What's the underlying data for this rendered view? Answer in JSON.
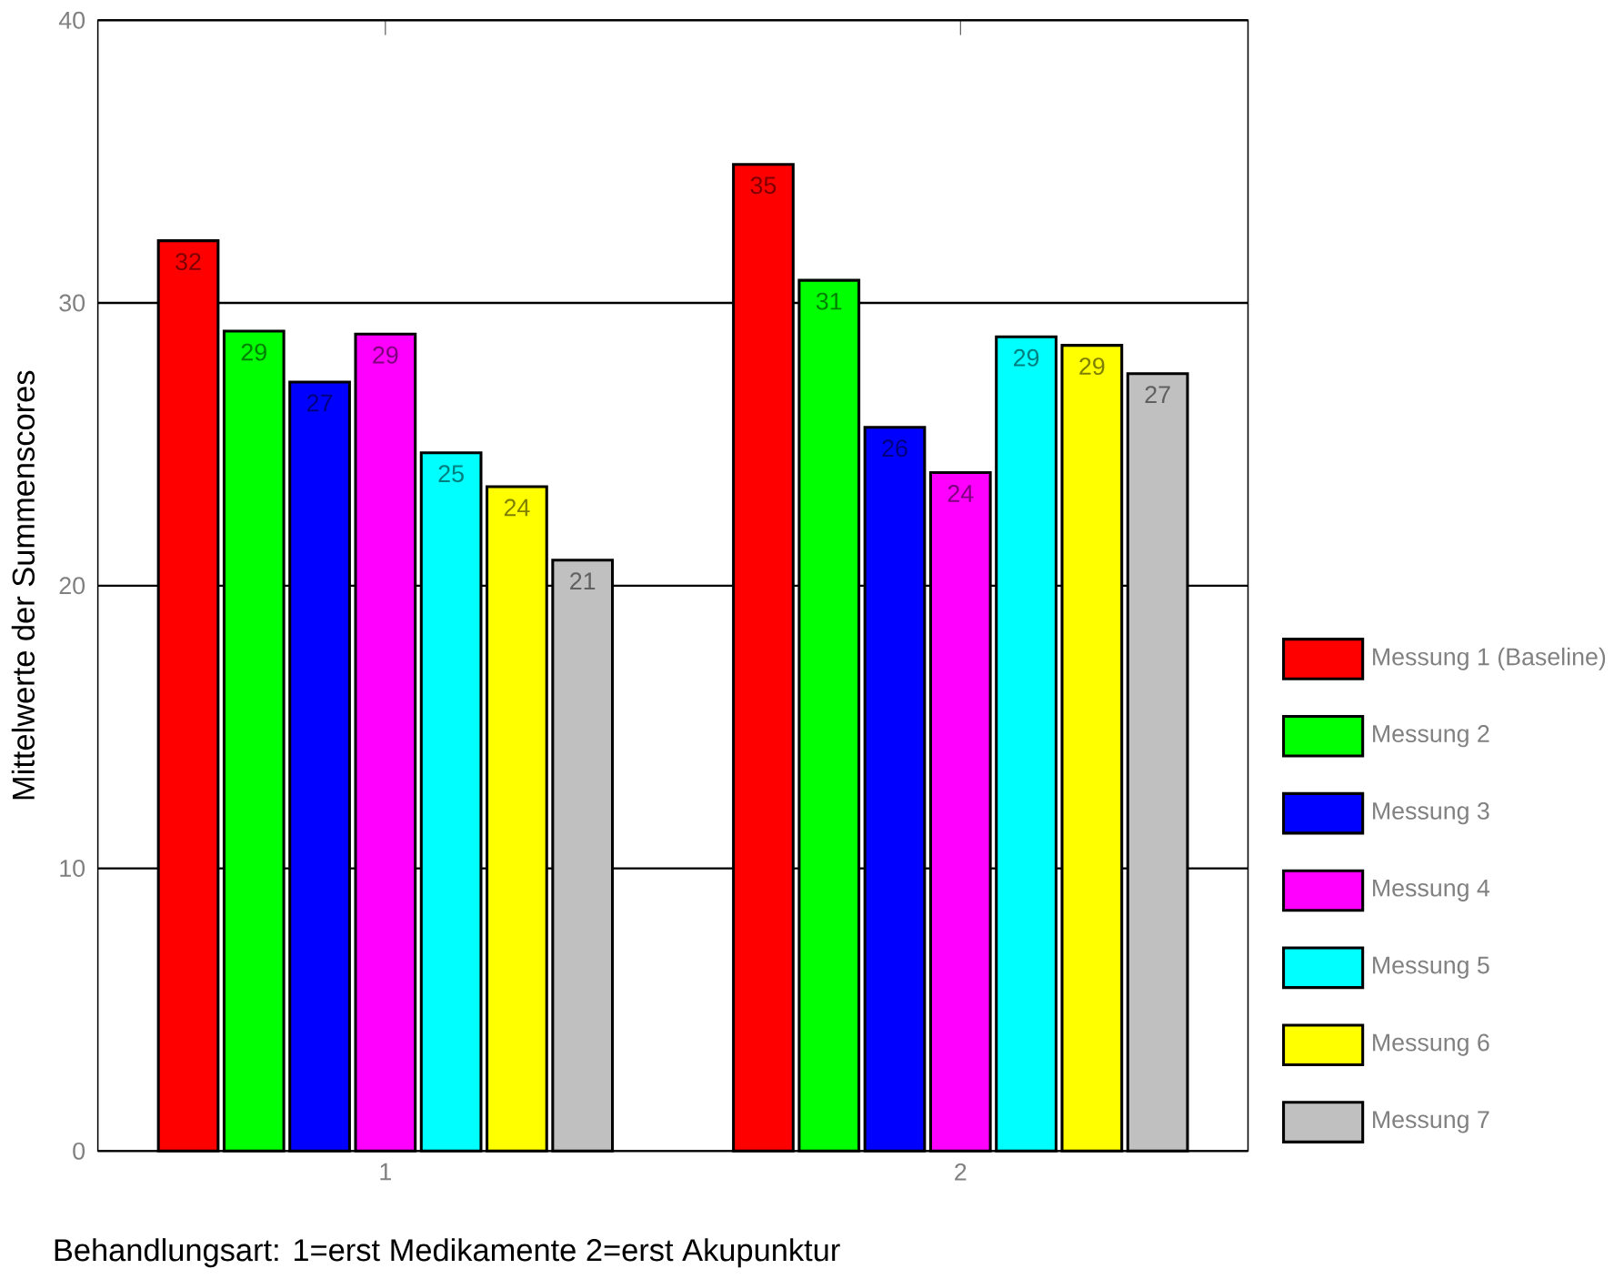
{
  "chart_data": {
    "type": "bar",
    "xlabel": "Behandlungsart: 1=erst Medikamente 2=erst Akupunktur",
    "ylabel": "Mittelwerte der Summenscores",
    "categories": [
      "1",
      "2"
    ],
    "series": [
      {
        "name": "Messung 1 (Baseline)",
        "color": "#ff0000",
        "values": [
          32.2,
          34.9
        ],
        "value_labels": [
          "32",
          "35"
        ]
      },
      {
        "name": "Messung 2",
        "color": "#00ff00",
        "values": [
          29.0,
          30.8
        ],
        "value_labels": [
          "29",
          "31"
        ]
      },
      {
        "name": "Messung 3",
        "color": "#0000ff",
        "values": [
          27.2,
          25.6
        ],
        "value_labels": [
          "27",
          "26"
        ]
      },
      {
        "name": "Messung 4",
        "color": "#ff00ff",
        "values": [
          28.9,
          24.0
        ],
        "value_labels": [
          "29",
          "24"
        ]
      },
      {
        "name": "Messung 5",
        "color": "#00ffff",
        "values": [
          24.7,
          28.8
        ],
        "value_labels": [
          "25",
          "29"
        ]
      },
      {
        "name": "Messung 6",
        "color": "#ffff00",
        "values": [
          23.5,
          28.5
        ],
        "value_labels": [
          "24",
          "29"
        ]
      },
      {
        "name": "Messung 7",
        "color": "#c0c0c0",
        "values": [
          20.9,
          27.5
        ],
        "value_labels": [
          "21",
          "27"
        ]
      }
    ],
    "ylim": [
      0,
      40
    ],
    "yticks": [
      0,
      10,
      20,
      30,
      40
    ],
    "grid": "y",
    "legend": "right"
  }
}
